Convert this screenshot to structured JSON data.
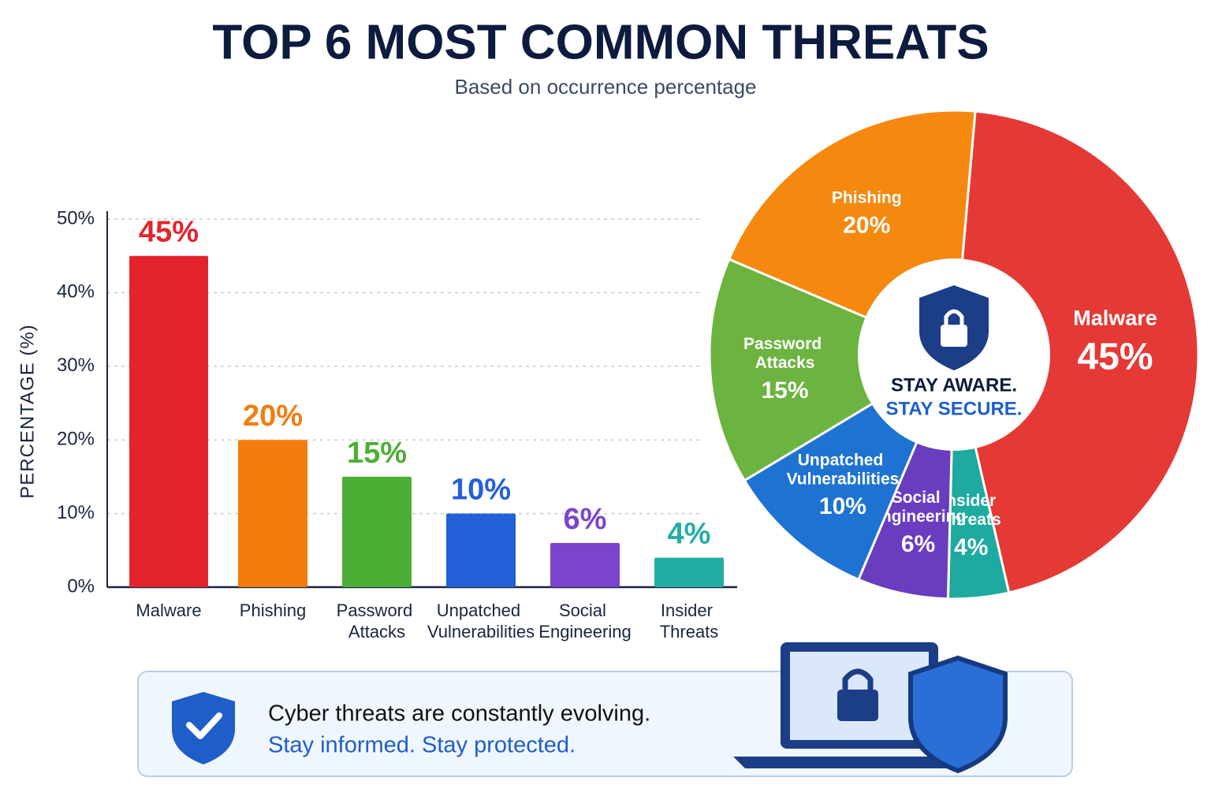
{
  "title": "TOP 6 MOST COMMON THREATS",
  "subtitle": "Based on occurrence percentage",
  "chart_data": [
    {
      "type": "bar",
      "y_label": "PERCENTAGE (%)",
      "categories": [
        "Malware",
        "Phishing",
        "Password Attacks",
        "Unpatched Vulnerabilities",
        "Social Engineering",
        "Insider Threats"
      ],
      "values": [
        45,
        20,
        15,
        10,
        6,
        4
      ],
      "value_labels": [
        "45%",
        "20%",
        "15%",
        "10%",
        "6%",
        "4%"
      ],
      "colors": [
        "#e3242b",
        "#f47c0f",
        "#4caf35",
        "#2360d8",
        "#7b44cc",
        "#23aea5"
      ],
      "ylim": [
        0,
        50
      ],
      "yticks": [
        {
          "value": 0,
          "label": "0%"
        },
        {
          "value": 10,
          "label": "10%"
        },
        {
          "value": 20,
          "label": "20%"
        },
        {
          "value": 30,
          "label": "30%"
        },
        {
          "value": 40,
          "label": "40%"
        },
        {
          "value": 50,
          "label": "50%"
        }
      ],
      "grid": true
    },
    {
      "type": "pie",
      "categories": [
        "Malware",
        "Insider Threats",
        "Social Engineering",
        "Unpatched Vulnerabilities",
        "Password Attacks",
        "Phishing"
      ],
      "values": [
        45,
        4,
        6,
        10,
        15,
        20
      ],
      "value_labels": [
        "45%",
        "4%",
        "6%",
        "10%",
        "15%",
        "20%"
      ],
      "colors": [
        "#e53935",
        "#1eaaa0",
        "#6a3cc0",
        "#1e73d2",
        "#6cb33f",
        "#f5890f"
      ]
    }
  ],
  "center_text": [
    "STAY AWARE.",
    "STAY SECURE."
  ],
  "footer": {
    "line1": "Cyber threats are constantly evolving.",
    "line2": "Stay informed. Stay protected."
  }
}
